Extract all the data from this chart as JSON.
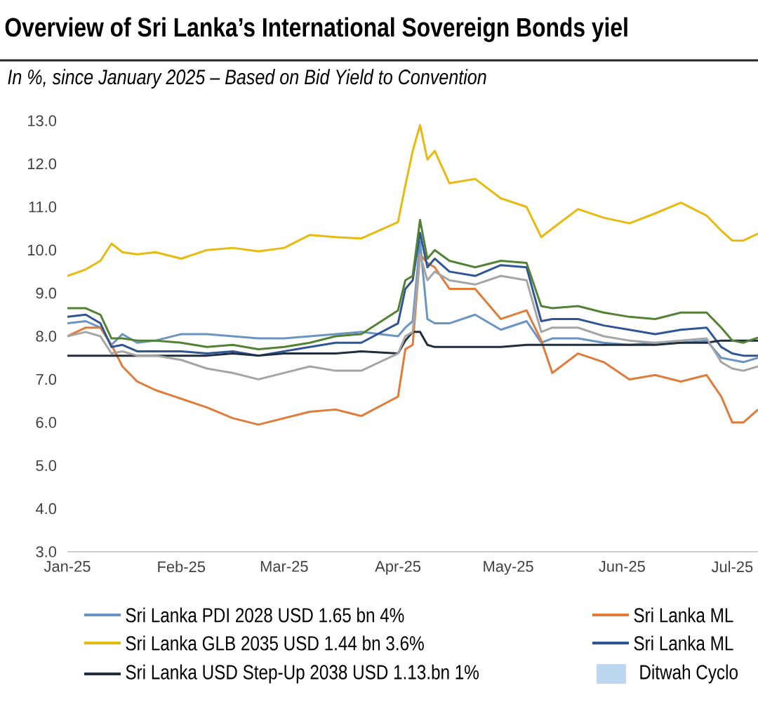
{
  "chart_data": {
    "type": "line",
    "title": "Overview of Sri Lanka’s International Sovereign Bonds yiel",
    "subtitle": "In %, since January 2025 – Based on Bid Yield to Convention",
    "x": [
      "2025-01-01",
      "2025-01-06",
      "2025-01-10",
      "2025-01-13",
      "2025-01-16",
      "2025-01-20",
      "2025-01-25",
      "2025-02-01",
      "2025-02-08",
      "2025-02-15",
      "2025-02-22",
      "2025-03-01",
      "2025-03-08",
      "2025-03-15",
      "2025-03-22",
      "2025-04-01",
      "2025-04-03",
      "2025-04-05",
      "2025-04-07",
      "2025-04-09",
      "2025-04-11",
      "2025-04-15",
      "2025-04-22",
      "2025-04-29",
      "2025-05-06",
      "2025-05-10",
      "2025-05-13",
      "2025-05-20",
      "2025-05-27",
      "2025-06-03",
      "2025-06-10",
      "2025-06-17",
      "2025-06-24",
      "2025-06-28",
      "2025-07-01",
      "2025-07-04",
      "2025-07-08"
    ],
    "series": [
      {
        "name": "Sri Lanka PDI 2028 USD 1.65 bn 4%",
        "color": "#6a94c4",
        "values": [
          8.3,
          8.35,
          8.2,
          7.8,
          8.05,
          7.85,
          7.9,
          8.05,
          8.05,
          8.0,
          7.95,
          7.95,
          8.0,
          8.05,
          8.1,
          8.0,
          8.2,
          8.35,
          10.2,
          8.4,
          8.3,
          8.3,
          8.5,
          8.15,
          8.35,
          7.85,
          7.95,
          7.95,
          7.85,
          7.8,
          7.85,
          7.85,
          7.9,
          7.5,
          7.45,
          7.4,
          7.5
        ]
      },
      {
        "name": "Sri Lanka ML",
        "color": "#e07b39",
        "values": [
          8.0,
          8.2,
          8.2,
          7.8,
          7.3,
          6.95,
          6.75,
          6.55,
          6.35,
          6.1,
          5.95,
          6.1,
          6.25,
          6.3,
          6.15,
          6.6,
          7.7,
          7.8,
          9.9,
          9.7,
          9.6,
          9.1,
          9.1,
          8.4,
          8.6,
          7.9,
          7.15,
          7.6,
          7.4,
          7.0,
          7.1,
          6.95,
          7.1,
          6.6,
          6.0,
          6.0,
          6.3
        ]
      },
      {
        "name": "Sri Lanka GLB 2035 USD 1.44 bn 3.6%",
        "color": "#e8b90f",
        "values": [
          9.4,
          9.55,
          9.75,
          10.15,
          9.95,
          9.9,
          9.95,
          9.8,
          10.0,
          10.05,
          9.97,
          10.05,
          10.35,
          10.3,
          10.27,
          10.65,
          11.5,
          12.3,
          12.9,
          12.1,
          12.3,
          11.55,
          11.65,
          11.2,
          11.0,
          10.3,
          10.5,
          10.95,
          10.75,
          10.62,
          10.85,
          11.1,
          10.8,
          10.45,
          10.22,
          10.22,
          10.38
        ]
      },
      {
        "name": "Sri Lanka ML",
        "color": "#2f5597",
        "values": [
          8.45,
          8.5,
          8.3,
          7.75,
          7.8,
          7.65,
          7.65,
          7.65,
          7.6,
          7.65,
          7.55,
          7.65,
          7.75,
          7.85,
          7.85,
          8.3,
          9.1,
          9.3,
          10.4,
          9.6,
          9.8,
          9.5,
          9.4,
          9.65,
          9.6,
          8.35,
          8.4,
          8.4,
          8.25,
          8.15,
          8.05,
          8.15,
          8.2,
          7.75,
          7.6,
          7.55,
          7.55
        ]
      },
      {
        "name": "Sri Lanka USD Step-Up 2038 USD 1.13.bn 1%",
        "color": "#1f2d3d",
        "values": [
          7.55,
          7.55,
          7.55,
          7.55,
          7.55,
          7.55,
          7.55,
          7.55,
          7.55,
          7.6,
          7.55,
          7.6,
          7.6,
          7.6,
          7.65,
          7.6,
          7.9,
          8.1,
          8.1,
          7.8,
          7.75,
          7.75,
          7.75,
          7.75,
          7.8,
          7.8,
          7.8,
          7.8,
          7.8,
          7.8,
          7.8,
          7.85,
          7.85,
          7.9,
          7.9,
          7.9,
          7.9
        ]
      },
      {
        "color": "#548235",
        "values": [
          8.65,
          8.65,
          8.5,
          7.95,
          7.95,
          7.9,
          7.9,
          7.85,
          7.75,
          7.8,
          7.7,
          7.75,
          7.85,
          8.0,
          8.05,
          8.6,
          9.3,
          9.4,
          10.7,
          9.8,
          10.0,
          9.75,
          9.6,
          9.75,
          9.7,
          8.7,
          8.65,
          8.7,
          8.55,
          8.45,
          8.4,
          8.55,
          8.55,
          8.2,
          7.9,
          7.85,
          7.97
        ]
      },
      {
        "color": "#a5a5a5",
        "values": [
          8.0,
          8.1,
          8.0,
          7.6,
          7.65,
          7.55,
          7.55,
          7.45,
          7.25,
          7.15,
          7.0,
          7.15,
          7.3,
          7.2,
          7.2,
          7.6,
          8.0,
          8.1,
          9.9,
          9.3,
          9.5,
          9.3,
          9.2,
          9.4,
          9.3,
          8.1,
          8.2,
          8.2,
          8.0,
          7.9,
          7.85,
          7.9,
          7.95,
          7.4,
          7.25,
          7.2,
          7.3
        ]
      }
    ],
    "xlim": [
      "2025-01-01",
      "2025-07-08"
    ],
    "xticks": [
      {
        "value": "2025-01-01",
        "label": "Jan-25"
      },
      {
        "value": "2025-02-01",
        "label": "Feb-25"
      },
      {
        "value": "2025-03-01",
        "label": "Mar-25"
      },
      {
        "value": "2025-04-01",
        "label": "Apr-25"
      },
      {
        "value": "2025-05-01",
        "label": "May-25"
      },
      {
        "value": "2025-06-01",
        "label": "Jun-25"
      },
      {
        "value": "2025-07-01",
        "label": "Jul-25"
      }
    ],
    "ylim": [
      3,
      13
    ],
    "yticks": [
      {
        "value": 3,
        "label": "3.0"
      },
      {
        "value": 4,
        "label": "4.0"
      },
      {
        "value": 5,
        "label": "5.0"
      },
      {
        "value": 6,
        "label": "6.0"
      },
      {
        "value": 7,
        "label": "7.0"
      },
      {
        "value": 8,
        "label": "8.0"
      },
      {
        "value": 9,
        "label": "9.0"
      },
      {
        "value": 10,
        "label": "10.0"
      },
      {
        "value": 11,
        "label": "11.0"
      },
      {
        "value": 12,
        "label": "12.0"
      },
      {
        "value": 13,
        "label": "13.0"
      }
    ],
    "legend": "bottom",
    "line_style": "solid",
    "annotations": [
      "Ditwah Cyclo"
    ]
  }
}
